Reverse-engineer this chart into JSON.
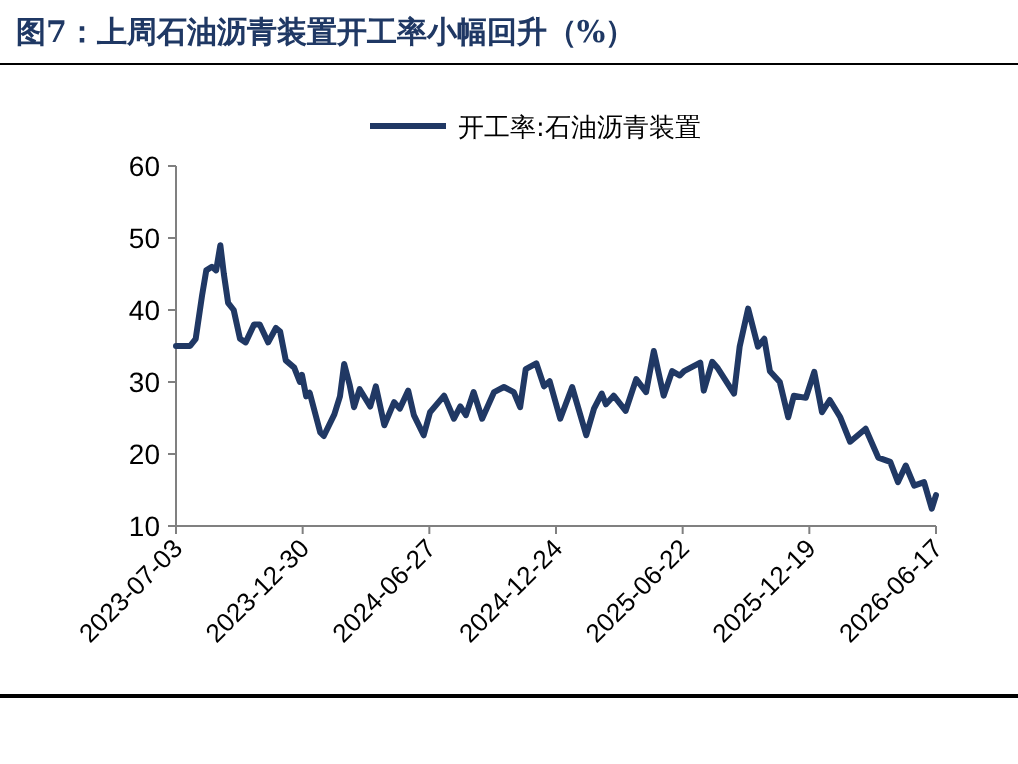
{
  "chart_data": {
    "type": "line",
    "title": "图7：上周石油沥青装置开工率小幅回升（%）",
    "x": [
      "2023-07-03",
      "2023-07-23",
      "2023-07-31",
      "2023-08-09",
      "2023-08-15",
      "2023-08-23",
      "2023-08-29",
      "2023-09-04",
      "2023-09-09",
      "2023-09-15",
      "2023-09-23",
      "2023-10-02",
      "2023-10-10",
      "2023-10-22",
      "2023-10-30",
      "2023-11-11",
      "2023-11-22",
      "2023-11-28",
      "2023-12-06",
      "2023-12-18",
      "2023-12-26",
      "2023-12-29",
      "2024-01-04",
      "2024-01-09",
      "2024-01-24",
      "2024-01-29",
      "2024-02-13",
      "2024-02-21",
      "2024-02-27",
      "2024-03-06",
      "2024-03-12",
      "2024-03-20",
      "2024-04-04",
      "2024-04-12",
      "2024-04-24",
      "2024-05-08",
      "2024-05-16",
      "2024-05-28",
      "2024-06-05",
      "2024-06-19",
      "2024-06-28",
      "2024-07-18",
      "2024-08-01",
      "2024-08-10",
      "2024-08-18",
      "2024-08-29",
      "2024-09-10",
      "2024-09-27",
      "2024-10-11",
      "2024-10-25",
      "2024-11-03",
      "2024-11-11",
      "2024-11-26",
      "2024-12-07",
      "2024-12-15",
      "2024-12-30",
      "2025-01-16",
      "2025-02-05",
      "2025-02-16",
      "2025-02-27",
      "2025-03-05",
      "2025-03-16",
      "2025-04-02",
      "2025-04-17",
      "2025-05-01",
      "2025-05-12",
      "2025-05-26",
      "2025-06-07",
      "2025-06-18",
      "2025-06-24",
      "2025-07-17",
      "2025-07-22",
      "2025-08-03",
      "2025-08-11",
      "2025-09-03",
      "2025-09-11",
      "2025-09-23",
      "2025-10-07",
      "2025-10-16",
      "2025-10-24",
      "2025-11-07",
      "2025-11-19",
      "2025-11-27",
      "2025-12-14",
      "2025-12-26",
      "2026-01-06",
      "2026-01-17",
      "2026-02-01",
      "2026-02-15",
      "2026-03-09",
      "2026-03-27",
      "2026-04-13",
      "2026-04-24",
      "2026-05-05",
      "2026-05-17",
      "2026-05-31",
      "2026-06-11",
      "2026-06-17"
    ],
    "series": [
      {
        "name": "开工率:石油沥青装置",
        "color": "#203864",
        "values": [
          35,
          35,
          36,
          42,
          45.5,
          46,
          45.5,
          49,
          45,
          41,
          40,
          36,
          35.5,
          38,
          38,
          35.5,
          37.5,
          37,
          33,
          32,
          30,
          31,
          28,
          28.5,
          23,
          22.5,
          25.5,
          28,
          32.5,
          29.5,
          26.5,
          29,
          26.6,
          29.4,
          24,
          27.2,
          26.3,
          28.8,
          25.4,
          22.6,
          25.8,
          28.1,
          24.9,
          26.6,
          25.4,
          28.6,
          24.9,
          28.6,
          29.3,
          28.6,
          26.5,
          31.8,
          32.6,
          29.4,
          30.1,
          24.9,
          29.3,
          22.6,
          26.3,
          28.4,
          26.9,
          28.1,
          26,
          30.4,
          28.6,
          34.3,
          28.1,
          31.5,
          30.9,
          31.5,
          32.7,
          28.8,
          32.8,
          31.9,
          28.4,
          34.9,
          40.2,
          34.9,
          36,
          31.5,
          30,
          25.1,
          28.1,
          27.8,
          31.4,
          25.8,
          27.5,
          25.1,
          21.7,
          23.5,
          19.5,
          18.9,
          16.1,
          18.4,
          15.6,
          16.1,
          12.4,
          14.3
        ]
      }
    ],
    "ylim": [
      10,
      60
    ],
    "yticks": [
      10,
      20,
      30,
      40,
      50,
      60
    ],
    "xlim": [
      "2023-07-03",
      "2026-06-17"
    ],
    "xticks": [
      {
        "value": "2023-07-03",
        "label": "2023-07-03"
      },
      {
        "value": "2023-12-30",
        "label": "2023-12-30"
      },
      {
        "value": "2024-06-27",
        "label": "2024-06-27"
      },
      {
        "value": "2024-12-24",
        "label": "2024-12-24"
      },
      {
        "value": "2025-06-22",
        "label": "2025-06-22"
      },
      {
        "value": "2025-12-19",
        "label": "2025-12-19"
      },
      {
        "value": "2026-06-17",
        "label": "2026-06-17"
      }
    ],
    "legend": "top",
    "grid": false,
    "marker": "none",
    "line_style": "solid"
  }
}
